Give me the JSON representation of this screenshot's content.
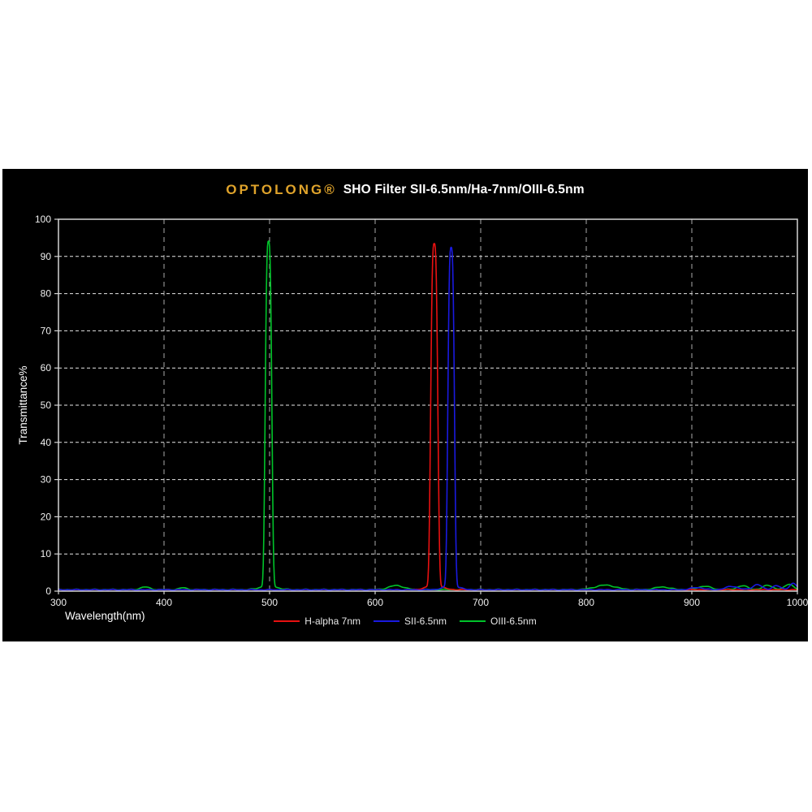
{
  "header": {
    "brand": "OPTOLONG®",
    "product_title": "SHO Filter SII-6.5nm/Ha-7nm/OIII-6.5nm"
  },
  "colors": {
    "page_bg": "#ffffff",
    "panel_bg": "#000000",
    "brand_gold": "#dfa32b",
    "title_text": "#ffffff",
    "h_grid": "#f5f5f5",
    "v_grid": "#c8c8c8",
    "axis_border": "#d4d4d4",
    "tick_text": "#f0f0f0",
    "axis_label_text": "#ffffff"
  },
  "chart_data": {
    "type": "line",
    "title": "OPTOLONG® SHO Filter SII-6.5nm/Ha-7nm/OIII-6.5nm",
    "xlabel": "Wavelength(nm)",
    "ylabel": "Transmittance%",
    "xlim": [
      300,
      1000
    ],
    "ylim": [
      0,
      100
    ],
    "x_ticks": [
      300,
      400,
      500,
      600,
      700,
      800,
      900,
      1000
    ],
    "y_ticks": [
      0,
      10,
      20,
      30,
      40,
      50,
      60,
      70,
      80,
      90,
      100
    ],
    "grid": true,
    "grid_style": "dashed",
    "legend_position": "bottom",
    "series": [
      {
        "name": "H-alpha 7nm",
        "color": "#e81111",
        "shape": "bandpass-peak",
        "center_nm": 656,
        "fwhm_nm": 7,
        "peak_transmittance_pct": 92,
        "baseline_pct": 0.25,
        "bumps": []
      },
      {
        "name": "SII-6.5nm",
        "color": "#1a1ae0",
        "shape": "bandpass-peak",
        "center_nm": 672,
        "fwhm_nm": 6.5,
        "peak_transmittance_pct": 91,
        "baseline_pct": 0.25,
        "bumps": [
          {
            "center": 905,
            "fwhm": 14,
            "height": 0.6
          },
          {
            "center": 938,
            "fwhm": 14,
            "height": 0.9
          },
          {
            "center": 962,
            "fwhm": 10,
            "height": 1.4
          },
          {
            "center": 980,
            "fwhm": 9,
            "height": 1.1
          },
          {
            "center": 996,
            "fwhm": 8,
            "height": 1.7
          }
        ]
      },
      {
        "name": "OIII-6.5nm",
        "color": "#00c32a",
        "shape": "bandpass-peak",
        "center_nm": 499,
        "fwhm_nm": 6.5,
        "peak_transmittance_pct": 92.5,
        "baseline_pct": 0.3,
        "bumps": [
          {
            "center": 382,
            "fwhm": 10,
            "height": 0.7
          },
          {
            "center": 418,
            "fwhm": 8,
            "height": 0.5
          },
          {
            "center": 620,
            "fwhm": 16,
            "height": 1.1
          },
          {
            "center": 818,
            "fwhm": 22,
            "height": 1.2
          },
          {
            "center": 872,
            "fwhm": 16,
            "height": 0.7
          },
          {
            "center": 912,
            "fwhm": 14,
            "height": 0.9
          },
          {
            "center": 948,
            "fwhm": 12,
            "height": 1.0
          },
          {
            "center": 972,
            "fwhm": 10,
            "height": 1.2
          },
          {
            "center": 992,
            "fwhm": 9,
            "height": 1.5
          }
        ]
      }
    ]
  }
}
